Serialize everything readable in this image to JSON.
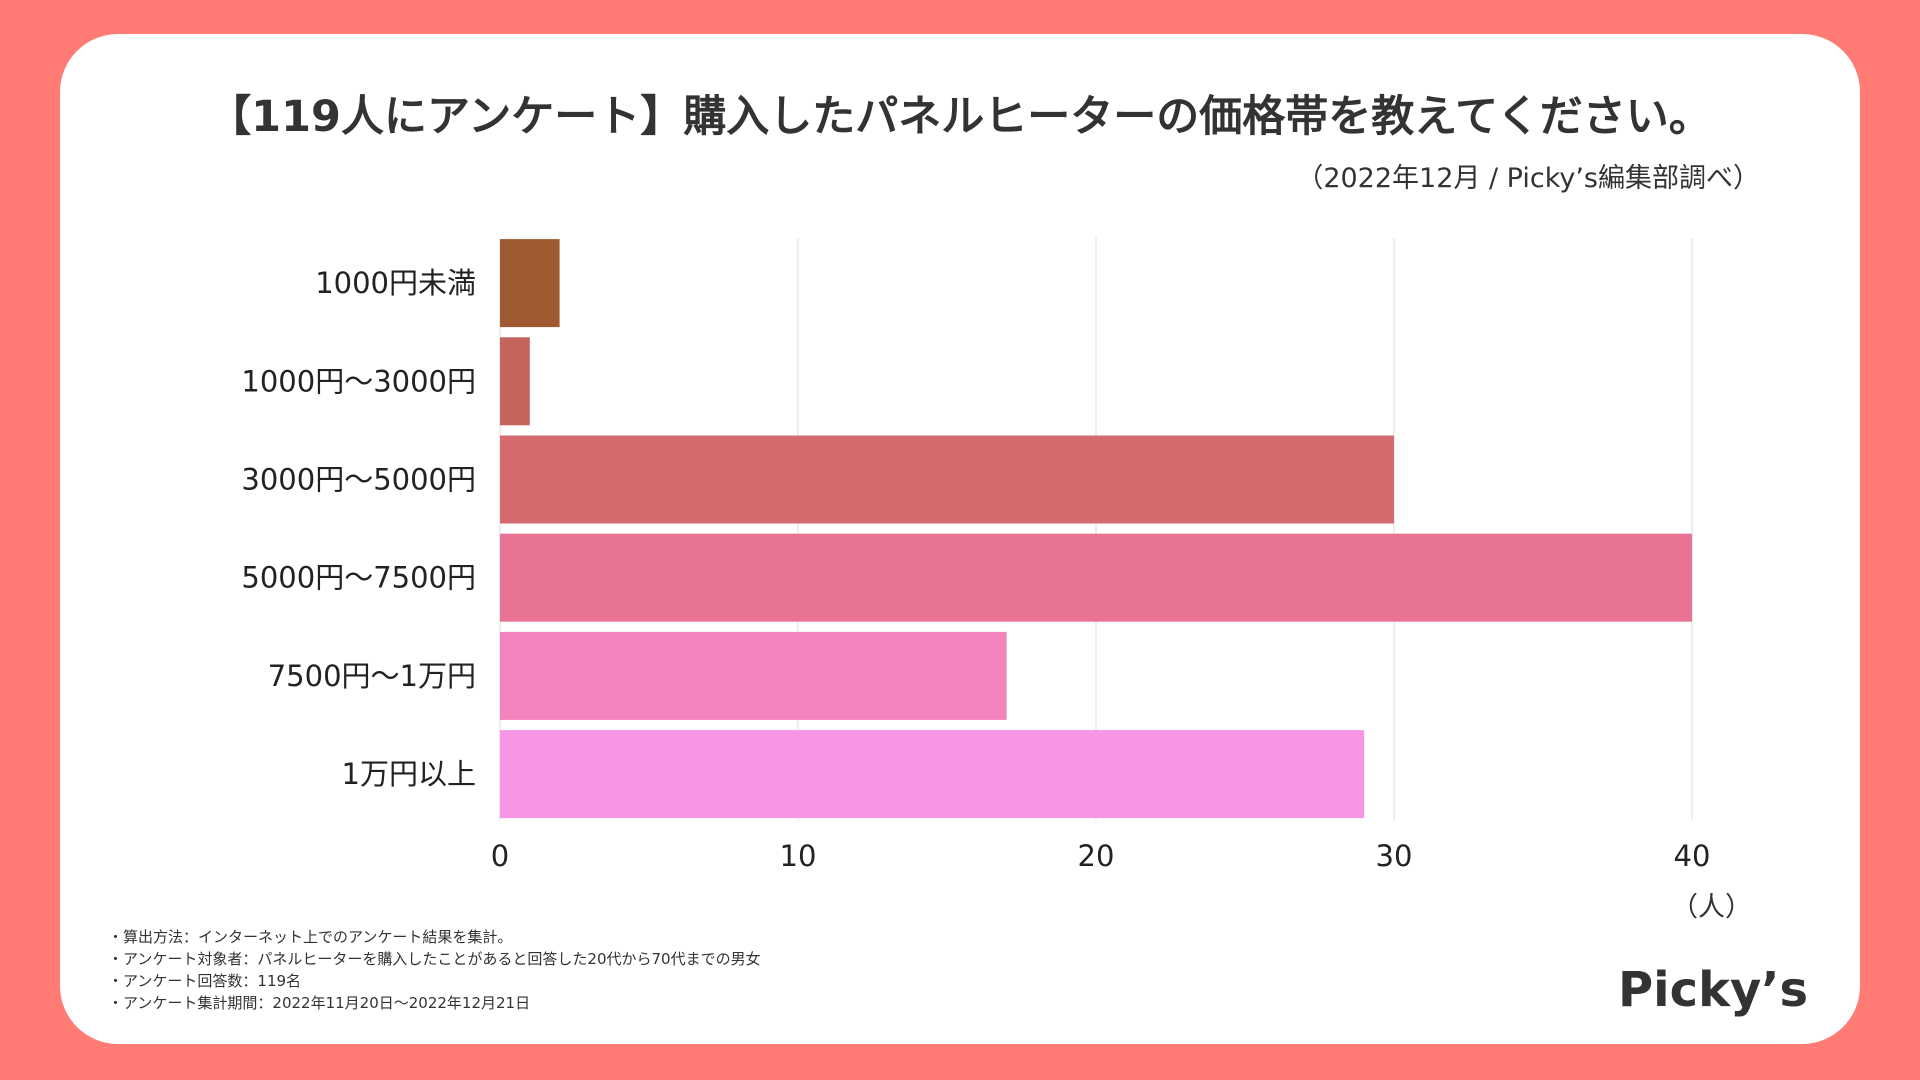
{
  "header": {
    "title": "【119人にアンケート】購入したパネルヒーターの価格帯を教えてください。",
    "subtitle": "（2022年12月 / Picky’s編集部調べ）"
  },
  "chart_data": {
    "type": "bar",
    "orientation": "horizontal",
    "categories": [
      "1000円未満",
      "1000円〜3000円",
      "3000円〜5000円",
      "5000円〜7500円",
      "7500円〜1万円",
      "1万円以上"
    ],
    "values": [
      2,
      1,
      30,
      40,
      17,
      29
    ],
    "colors": [
      "#A05A32",
      "#C4645A",
      "#D4696E",
      "#E87393",
      "#F482BC",
      "#F896E6"
    ],
    "xlim": [
      0,
      40
    ],
    "xticks": [
      0,
      10,
      20,
      30,
      40
    ],
    "xlabel": "（人）",
    "grid": true
  },
  "notes": [
    "・算出方法：インターネット上でのアンケート結果を集計。",
    "・アンケート対象者：パネルヒーターを購入したことがあると回答した20代から70代までの男女",
    "・アンケート回答数：119名",
    "・アンケート集計期間：2022年11月20日〜2022年12月21日"
  ],
  "brand": {
    "logo_text": "Picky’s",
    "background_color": "#FF7B73"
  }
}
